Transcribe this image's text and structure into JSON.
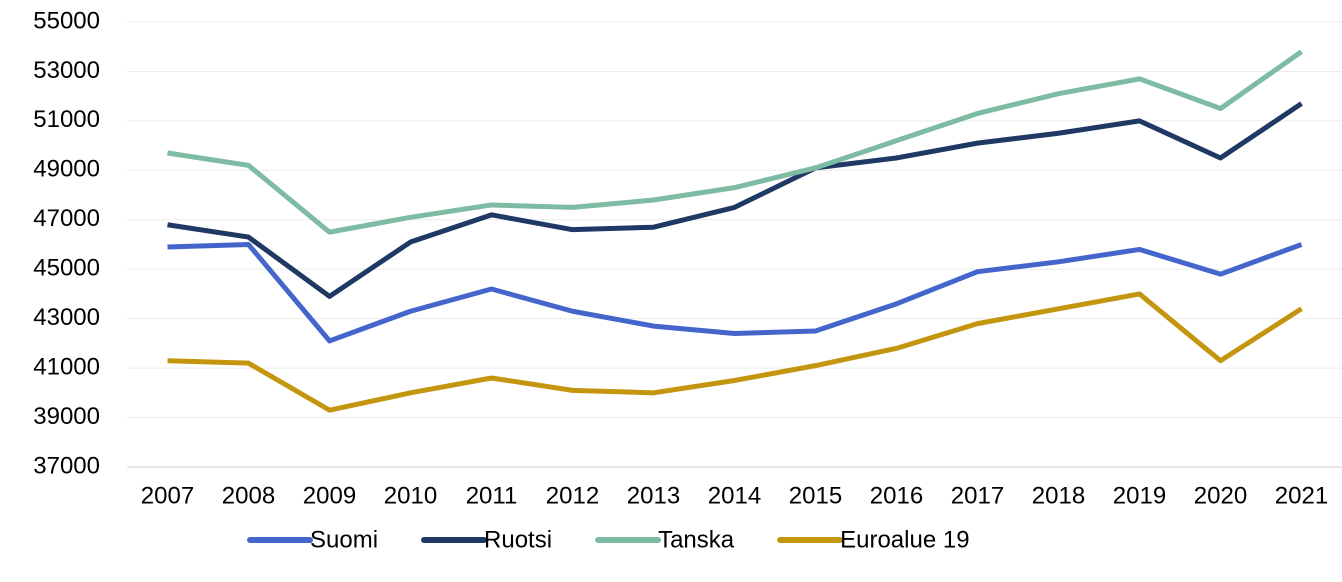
{
  "chart_data": {
    "type": "line",
    "categories": [
      "2007",
      "2008",
      "2009",
      "2010",
      "2011",
      "2012",
      "2013",
      "2014",
      "2015",
      "2016",
      "2017",
      "2018",
      "2019",
      "2020",
      "2021"
    ],
    "series": [
      {
        "name": "Suomi",
        "color": "#4466cc",
        "values": [
          45900,
          46000,
          42100,
          43300,
          44200,
          43300,
          42700,
          42400,
          42500,
          43600,
          44900,
          45300,
          45800,
          44800,
          46000
        ]
      },
      {
        "name": "Ruotsi",
        "color": "#1f3864",
        "values": [
          46800,
          46300,
          43900,
          46100,
          47200,
          46600,
          46700,
          47500,
          49100,
          49500,
          50100,
          50500,
          51000,
          49500,
          51700
        ]
      },
      {
        "name": "Tanska",
        "color": "#7dbba2",
        "values": [
          49700,
          49200,
          46500,
          47100,
          47600,
          47500,
          47800,
          48300,
          49100,
          50200,
          51300,
          52100,
          52700,
          51500,
          53800
        ]
      },
      {
        "name": "Euroalue 19",
        "color": "#c4950f",
        "values": [
          41300,
          41200,
          39300,
          40000,
          40600,
          40100,
          40000,
          40500,
          41100,
          41800,
          42800,
          43400,
          44000,
          41300,
          43400
        ]
      }
    ],
    "ylim": [
      37000,
      55000
    ],
    "yticks": [
      37000,
      39000,
      41000,
      43000,
      45000,
      47000,
      49000,
      51000,
      53000,
      55000
    ],
    "grid": true,
    "legend": "bottom"
  }
}
